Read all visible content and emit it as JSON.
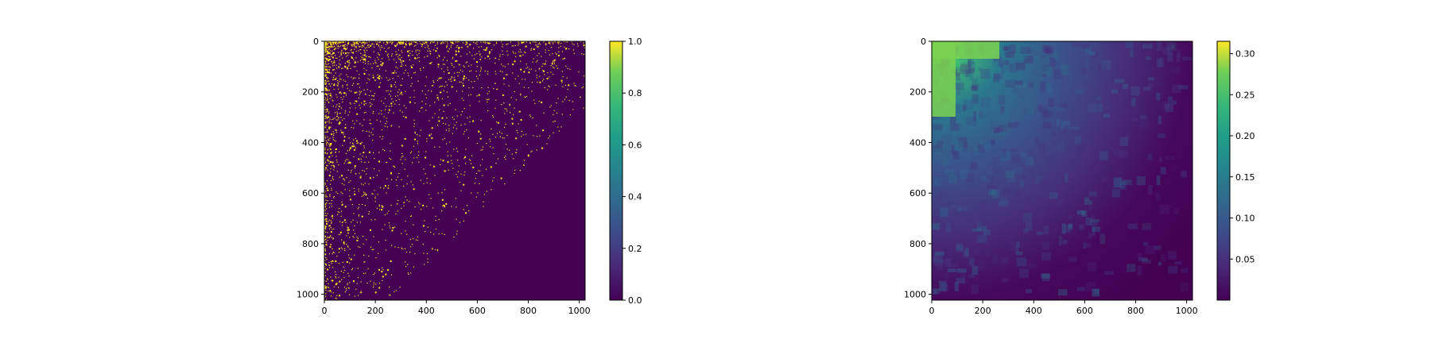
{
  "chart_data": [
    {
      "type": "heatmap",
      "title": "",
      "xlabel": "",
      "ylabel": "",
      "xlim": [
        0,
        1023
      ],
      "ylim": [
        1023,
        0
      ],
      "xticks": [
        0,
        200,
        400,
        600,
        800,
        1000
      ],
      "yticks": [
        0,
        200,
        400,
        600,
        800,
        1000
      ],
      "colormap": "viridis",
      "value_range": [
        0.0,
        1.0
      ],
      "colorbar_ticks": [
        "0.0",
        "0.2",
        "0.4",
        "0.6",
        "0.8",
        "1.0"
      ],
      "description_of_values": "binary map: mostly 0 with sparse 1-valued points concentrated toward the top-left, density decreasing with distance from origin"
    },
    {
      "type": "heatmap",
      "title": "",
      "xlabel": "",
      "ylabel": "",
      "xlim": [
        0,
        1023
      ],
      "ylim": [
        1023,
        0
      ],
      "xticks": [
        0,
        200,
        400,
        600,
        800,
        1000
      ],
      "yticks": [
        0,
        200,
        400,
        600,
        800,
        1000
      ],
      "colormap": "viridis",
      "value_range": [
        0.0,
        0.315
      ],
      "colorbar_ticks": [
        "0.05",
        "0.10",
        "0.15",
        "0.20",
        "0.25",
        "0.30"
      ],
      "description_of_values": "smooth density map: highest (~0.27) in top-left corner, decaying to ~0 toward bottom-right"
    }
  ],
  "colors": {
    "viridis_low": "#440154",
    "viridis_mid": "#21918c",
    "viridis_high": "#fde725"
  }
}
